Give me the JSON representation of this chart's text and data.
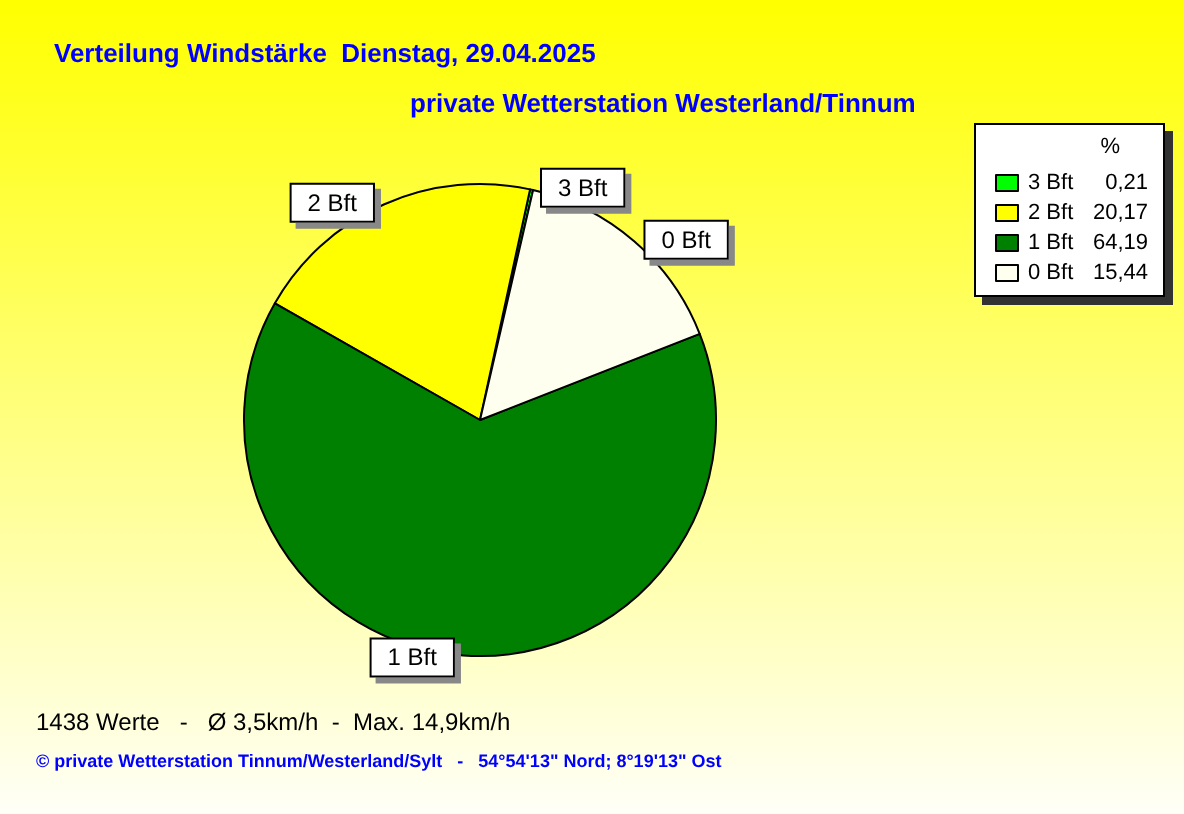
{
  "chart_data": {
    "type": "pie",
    "title": "Verteilung Windstärke  Dienstag, 29.04.2025",
    "subtitle": "private Wetterstation Westerland/Tinnum",
    "legend_title": "%",
    "categories": [
      "3 Bft",
      "2 Bft",
      "1 Bft",
      "0 Bft"
    ],
    "values": [
      0.21,
      20.17,
      64.19,
      15.44
    ],
    "colors": [
      "#00ff00",
      "#ffff00",
      "#008000",
      "#fffff0"
    ],
    "value_labels": [
      "0,21",
      "20,17",
      "64,19",
      "15,44"
    ],
    "legend": "top right",
    "annotations": [
      "1438 Werte   -   Ø 3,5km/h  -  Max. 14,9km/h",
      "© private Wetterstation Tinnum/Westerland/Sylt   -   54°54'13\" Nord; 8°19'13\" Ost"
    ]
  }
}
